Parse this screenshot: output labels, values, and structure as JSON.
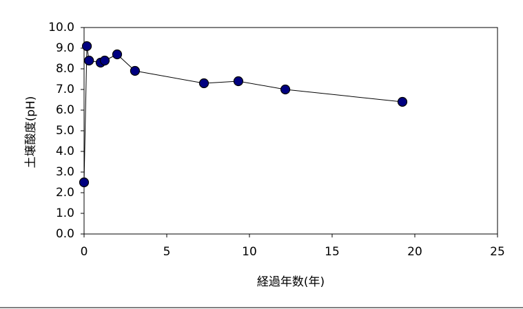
{
  "chart_data": {
    "type": "scatter-line",
    "xlabel": "経過年数(年)",
    "ylabel": "土壌酸度(pH)",
    "x": [
      0,
      0.17,
      0.3,
      1.0,
      1.25,
      2.0,
      3.08,
      7.25,
      9.33,
      12.17,
      19.25
    ],
    "values": [
      2.5,
      9.1,
      8.4,
      8.3,
      8.4,
      8.7,
      7.9,
      7.3,
      7.4,
      7.0,
      6.4
    ],
    "marker_color": "#000080",
    "line_color": "#000000",
    "xlim": [
      0,
      25
    ],
    "xticks": [
      0,
      5,
      10,
      15,
      20,
      25
    ],
    "ylim": [
      0,
      10
    ],
    "yticks": [
      {
        "value": 0,
        "label": "0.0"
      },
      {
        "value": 1,
        "label": "1.0"
      },
      {
        "value": 2,
        "label": "2.0"
      },
      {
        "value": 3,
        "label": "3.0"
      },
      {
        "value": 4,
        "label": "4.0"
      },
      {
        "value": 5,
        "label": "5.0"
      },
      {
        "value": 6,
        "label": "6.0"
      },
      {
        "value": 7,
        "label": "7.0"
      },
      {
        "value": 8,
        "label": "8.0"
      },
      {
        "value": 9,
        "label": "9.0"
      },
      {
        "value": 10,
        "label": "10.0"
      }
    ],
    "grid": false
  }
}
